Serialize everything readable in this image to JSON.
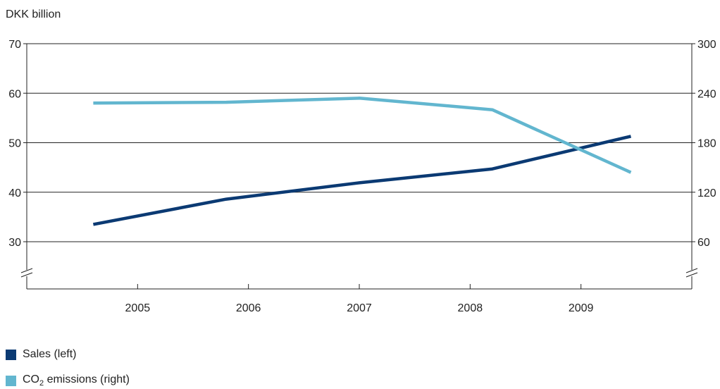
{
  "chart_data": {
    "type": "line",
    "unit_label": "DKK billion",
    "categories": [
      "2005",
      "2006",
      "2007",
      "2008",
      "2009"
    ],
    "x": [
      2004.6,
      2005.8,
      2007.0,
      2008.2,
      2009.45
    ],
    "y_left": {
      "ticks": [
        30,
        40,
        50,
        60,
        70
      ],
      "lim": [
        30,
        70
      ],
      "axis_break": true
    },
    "y_right": {
      "ticks": [
        60,
        120,
        180,
        240,
        300
      ],
      "lim": [
        60,
        300
      ],
      "axis_break": true
    },
    "series": [
      {
        "name": "Sales (left)",
        "axis": "left",
        "color": "#0b3a73",
        "values": [
          33.5,
          38.6,
          41.9,
          44.7,
          51.3
        ]
      },
      {
        "name": "CO₂ emissions (right)",
        "axis": "right",
        "color": "#62b6cf",
        "values": [
          228,
          229,
          234,
          220,
          144
        ]
      }
    ],
    "legend": {
      "sales_label": "Sales (left)",
      "co2_prefix": "CO",
      "co2_sub": "2",
      "co2_suffix": " emissions (right)"
    },
    "grid": "horizontal",
    "legend_position": "bottom-left"
  }
}
